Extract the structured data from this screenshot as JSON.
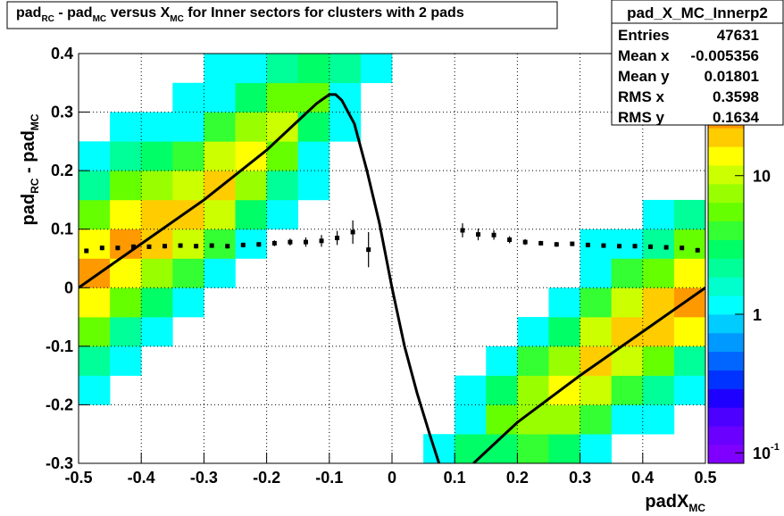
{
  "chart_data": {
    "type": "histogram2d",
    "title_parts": [
      "pad",
      "RC",
      " - pad",
      "MC",
      " versus X",
      "MC",
      " for Inner sectors for clusters with 2 pads"
    ],
    "ylabel_parts": [
      "pad",
      "RC",
      " - pad",
      "MC"
    ],
    "xlabel_parts": [
      "padX",
      "MC"
    ],
    "xlim": [
      -0.5,
      0.5
    ],
    "ylim": [
      -0.3,
      0.4
    ],
    "xticks": [
      -0.5,
      -0.4,
      -0.3,
      -0.2,
      -0.1,
      0,
      0.1,
      0.2,
      0.3,
      0.4,
      0.5
    ],
    "yticks": [
      -0.3,
      -0.2,
      -0.1,
      0,
      0.1,
      0.2,
      0.3,
      0.4
    ],
    "grid": true,
    "zlog": true,
    "zlim": [
      0.084,
      76
    ],
    "zticks": [
      {
        "value": 0.1,
        "label": "10",
        "exponent": "-1"
      },
      {
        "value": 1,
        "label": "1"
      },
      {
        "value": 10,
        "label": "10"
      }
    ],
    "palette": [
      "#7f00ff",
      "#6a00ff",
      "#4c00ff",
      "#1e00ff",
      "#0033ff",
      "#0066ff",
      "#0099ff",
      "#00ccff",
      "#00ffff",
      "#00ffcc",
      "#00ff99",
      "#00ff66",
      "#33ff33",
      "#66ff00",
      "#99ff00",
      "#ccff00",
      "#ffff00",
      "#ffcc00",
      "#ff9900",
      "#ff6600",
      "#ff3300",
      "#ff0000"
    ],
    "xbins": [
      -0.5,
      -0.45,
      -0.4,
      -0.35,
      -0.3,
      -0.25,
      -0.2,
      -0.15,
      -0.1,
      -0.05,
      0,
      0.05,
      0.1,
      0.15,
      0.2,
      0.25,
      0.3,
      0.35,
      0.4,
      0.45,
      0.5
    ],
    "ybins": [
      -0.3,
      -0.25,
      -0.2,
      -0.15,
      -0.1,
      -0.05,
      0,
      0.05,
      0.1,
      0.15,
      0.2,
      0.25,
      0.3,
      0.35,
      0.4
    ],
    "z": [
      [
        0,
        0,
        0,
        0,
        0,
        0,
        0,
        0,
        0,
        0,
        0,
        1,
        3,
        3,
        4,
        3,
        1,
        0,
        0,
        0
      ],
      [
        0,
        0,
        0,
        0,
        0,
        0,
        0,
        0,
        0,
        0,
        0,
        0,
        1,
        6,
        8,
        7,
        4,
        1,
        1,
        0
      ],
      [
        1,
        0,
        0,
        0,
        0,
        0,
        0,
        0,
        0,
        0,
        0,
        0,
        1,
        3,
        8,
        14,
        9,
        4,
        2,
        1
      ],
      [
        2,
        1,
        0,
        0,
        0,
        0,
        0,
        0,
        0,
        0,
        0,
        0,
        0,
        1,
        4,
        7,
        18,
        11,
        5,
        2
      ],
      [
        6,
        2,
        1,
        0,
        0,
        0,
        0,
        0,
        0,
        0,
        0,
        0,
        0,
        0,
        1,
        3,
        9,
        22,
        20,
        15
      ],
      [
        15,
        6,
        3,
        1,
        0,
        0,
        0,
        0,
        0,
        0,
        0,
        0,
        0,
        0,
        0,
        1,
        4,
        11,
        20,
        30
      ],
      [
        30,
        14,
        8,
        4,
        1,
        0,
        0,
        0,
        0,
        0,
        0,
        0,
        0,
        0,
        0,
        0,
        1,
        4,
        5,
        15
      ],
      [
        15,
        28,
        20,
        11,
        4,
        1,
        0,
        0,
        0,
        0,
        0,
        0,
        0,
        0,
        0,
        0,
        1,
        1,
        2,
        6
      ],
      [
        6,
        14,
        20,
        22,
        9,
        3,
        1,
        0,
        0,
        0,
        0,
        0,
        0,
        0,
        0,
        0,
        0,
        0,
        1,
        2
      ],
      [
        2,
        6,
        8,
        11,
        18,
        7,
        2,
        1,
        0,
        0,
        0,
        0,
        0,
        0,
        0,
        0,
        0,
        0,
        0,
        0
      ],
      [
        1,
        2,
        3,
        4,
        9,
        14,
        5,
        1,
        0,
        0,
        0,
        0,
        0,
        0,
        0,
        0,
        0,
        0,
        0,
        0
      ],
      [
        0,
        1,
        1,
        1,
        4,
        7,
        10,
        3,
        1,
        0,
        0,
        0,
        0,
        0,
        0,
        0,
        0,
        0,
        0,
        0
      ],
      [
        0,
        0,
        0,
        1,
        1,
        3,
        5,
        6,
        1,
        0,
        0,
        0,
        0,
        0,
        0,
        0,
        0,
        0,
        0,
        0
      ],
      [
        0,
        0,
        0,
        0,
        1,
        1,
        2,
        3,
        2,
        1,
        0,
        0,
        0,
        0,
        0,
        0,
        0,
        0,
        0,
        0
      ]
    ],
    "profile": {
      "x": [
        -0.4875,
        -0.4625,
        -0.4375,
        -0.4125,
        -0.3875,
        -0.3625,
        -0.3375,
        -0.3125,
        -0.2875,
        -0.2625,
        -0.2375,
        -0.2125,
        -0.1875,
        -0.1625,
        -0.1375,
        -0.1125,
        -0.0875,
        -0.0625,
        -0.0375,
        0.1125,
        0.1375,
        0.1625,
        0.1875,
        0.2125,
        0.2375,
        0.2625,
        0.2875,
        0.3125,
        0.3375,
        0.3625,
        0.3875,
        0.4125,
        0.4375,
        0.4625,
        0.4875
      ],
      "values": [
        0.063,
        0.068,
        0.068,
        0.07,
        0.07,
        0.071,
        0.072,
        0.071,
        0.072,
        0.071,
        0.073,
        0.074,
        0.076,
        0.078,
        0.078,
        0.08,
        0.085,
        0.095,
        0.065,
        0.098,
        0.091,
        0.09,
        0.082,
        0.078,
        0.076,
        0.074,
        0.075,
        0.073,
        0.072,
        0.071,
        0.071,
        0.07,
        0.069,
        0.068,
        0.064
      ],
      "errors": [
        0.004,
        0.004,
        0.004,
        0.004,
        0.004,
        0.004,
        0.004,
        0.004,
        0.004,
        0.004,
        0.004,
        0.004,
        0.005,
        0.006,
        0.008,
        0.01,
        0.012,
        0.02,
        0.03,
        0.012,
        0.01,
        0.008,
        0.006,
        0.005,
        0.004,
        0.004,
        0.004,
        0.004,
        0.004,
        0.004,
        0.004,
        0.004,
        0.004,
        0.004,
        0.004
      ]
    },
    "fit": {
      "x": [
        -0.5,
        -0.4,
        -0.3,
        -0.2,
        -0.15,
        -0.12,
        -0.1,
        -0.09,
        -0.08,
        -0.06,
        -0.04,
        -0.02,
        0,
        0.02,
        0.04,
        0.06,
        0.075,
        0.1,
        0.13,
        0.15,
        0.2,
        0.3,
        0.4,
        0.5
      ],
      "y": [
        0,
        0.075,
        0.15,
        0.235,
        0.285,
        0.315,
        0.33,
        0.33,
        0.32,
        0.28,
        0.2,
        0.11,
        0,
        -0.1,
        -0.18,
        -0.25,
        -0.3,
        null,
        -0.3,
        -0.28,
        -0.23,
        -0.15,
        -0.075,
        0
      ]
    },
    "stats": {
      "name": "pad_X_MC_Innerp2",
      "rows": [
        [
          "Entries",
          47631
        ],
        [
          "Mean x",
          -0.005356
        ],
        [
          "Mean y",
          0.01801
        ],
        [
          "RMS x",
          0.3598
        ],
        [
          "RMS y",
          0.1634
        ]
      ]
    }
  }
}
